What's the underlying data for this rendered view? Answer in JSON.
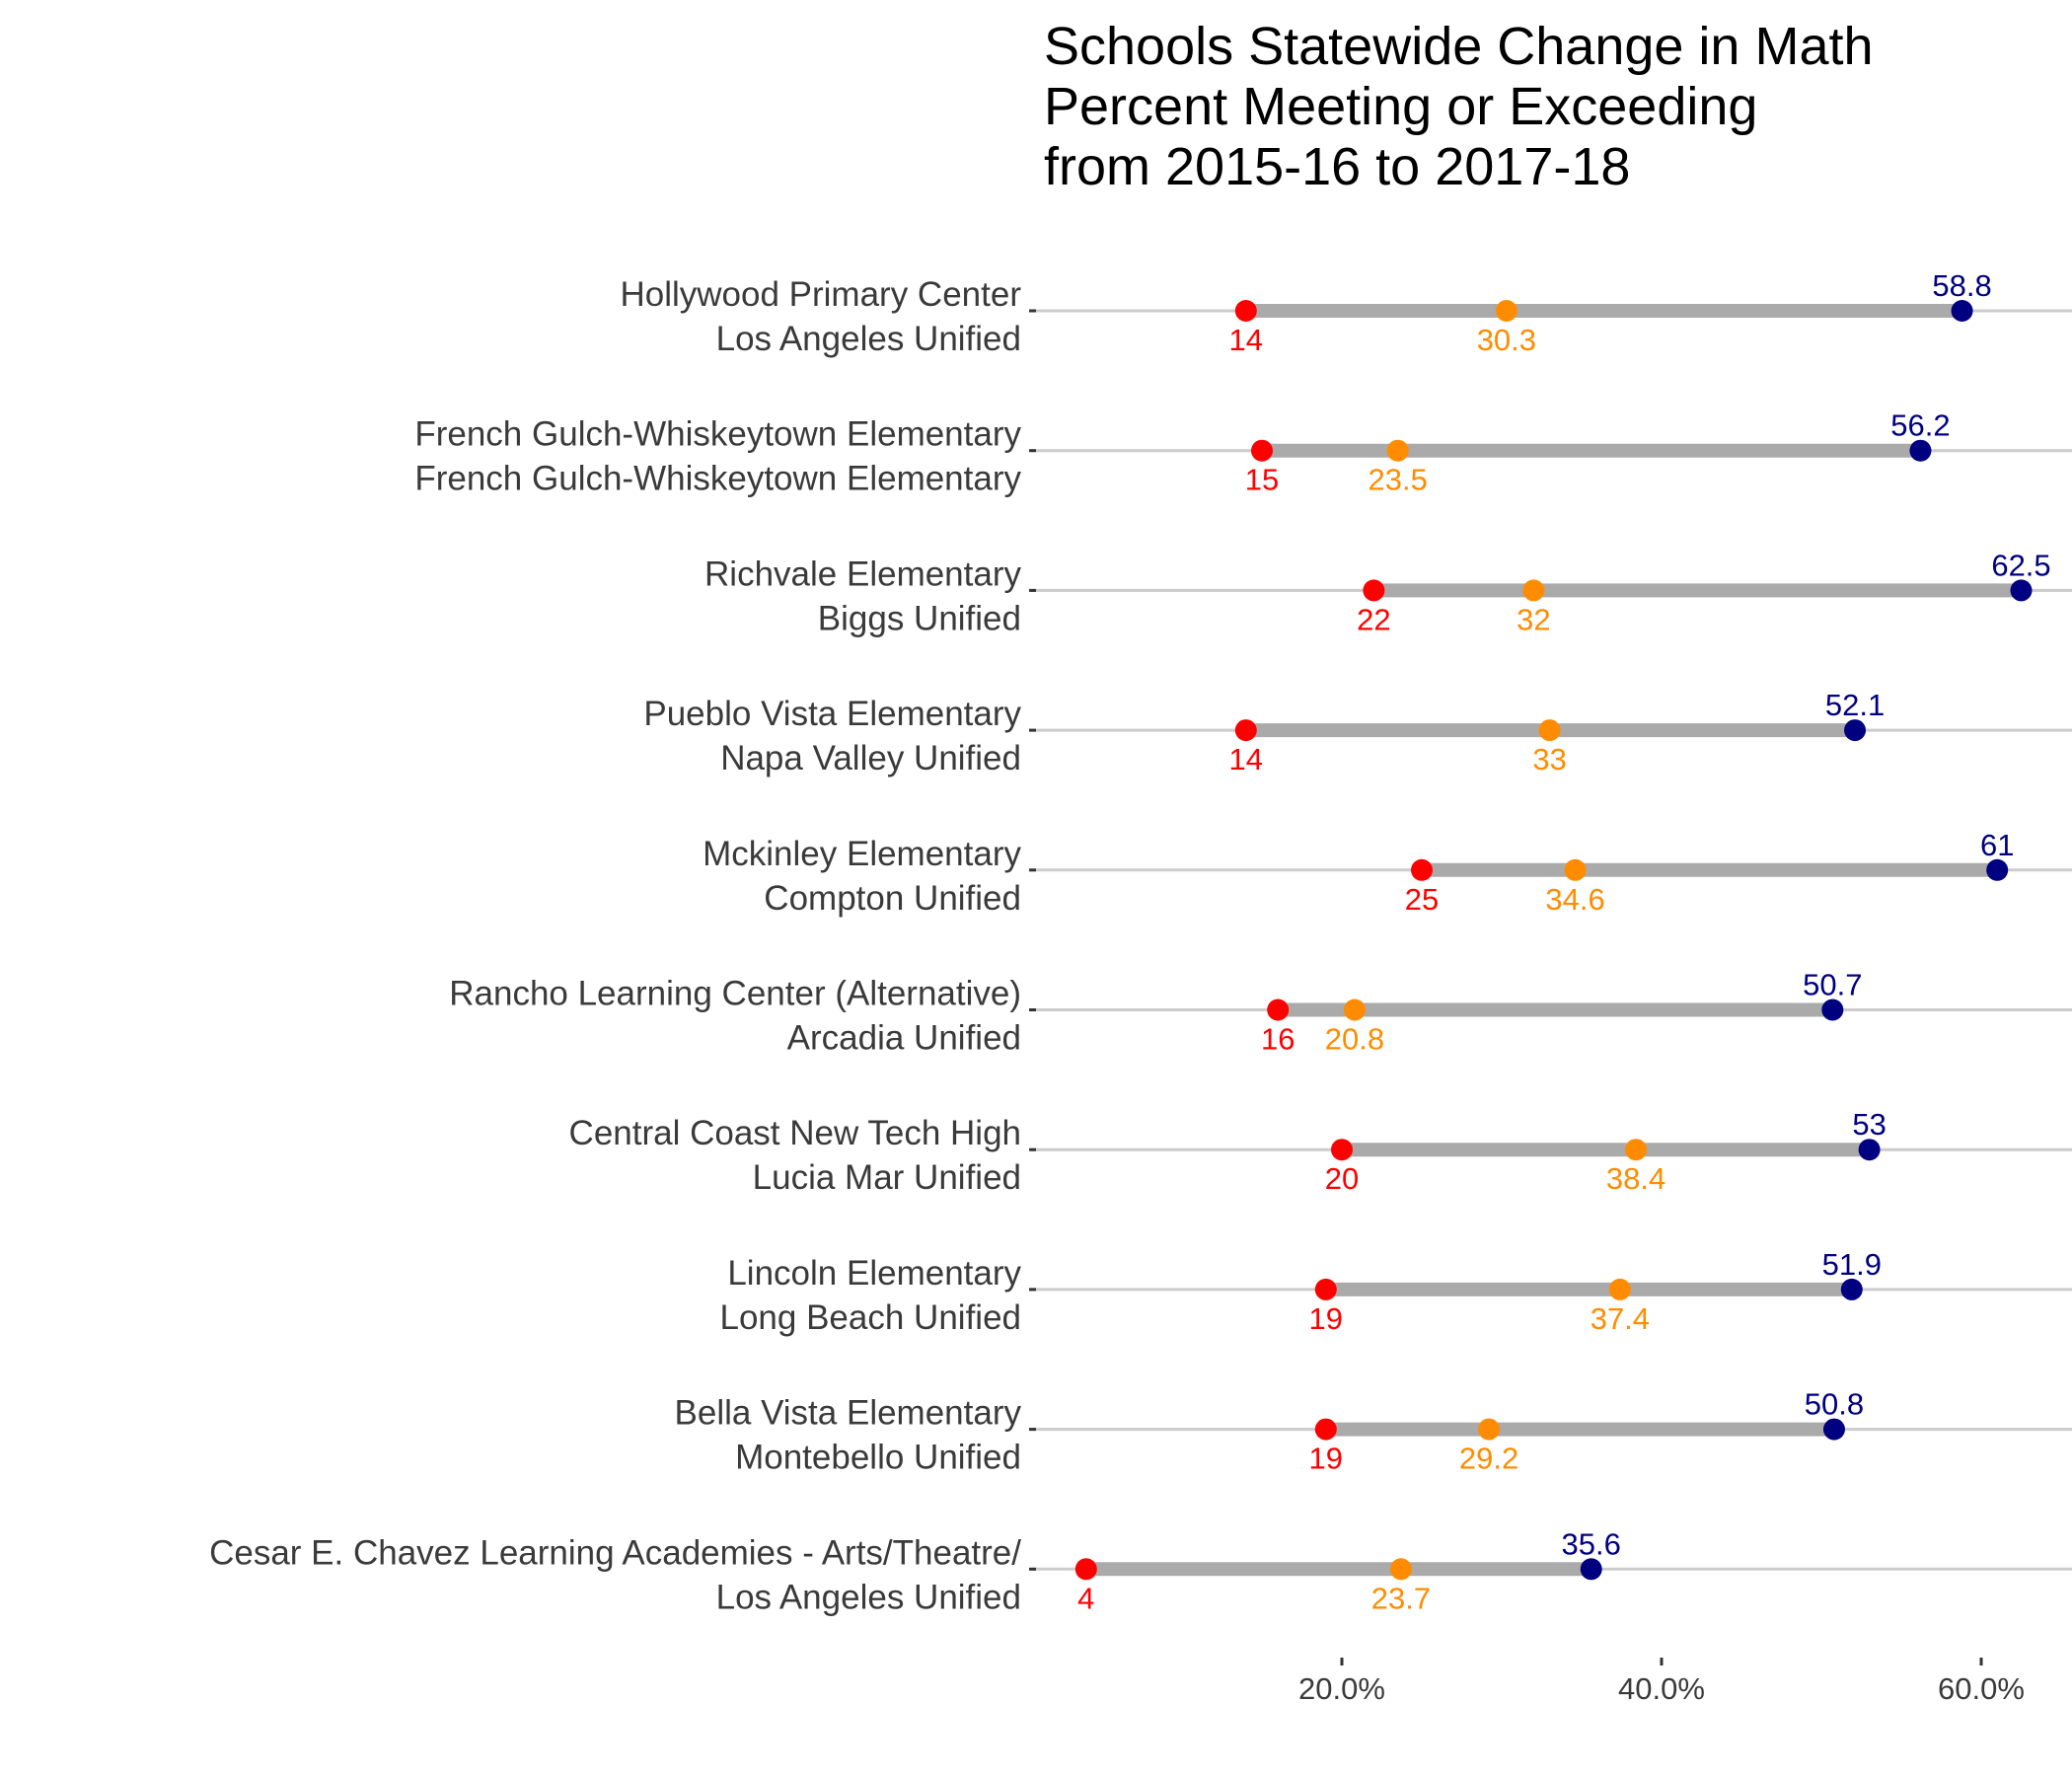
{
  "chart_data": {
    "type": "dumbbell",
    "title": [
      "Schools Statewide Change in Math",
      "Percent Meeting or Exceeding",
      "from 2015-16 to 2017-18"
    ],
    "xlabel": "",
    "ylabel": "",
    "xlim": [
      0,
      65
    ],
    "x_ticks": [
      20,
      40,
      60
    ],
    "x_tick_labels": [
      "20.0%",
      "40.0%",
      "60.0%"
    ],
    "grid": "horizontal row lines",
    "colors": {
      "low": "#ff0000",
      "middle": "#ff8c00",
      "high": "#000080",
      "segment": "#aaaaaa",
      "gridline": "#cccccc"
    },
    "rows": [
      {
        "school": "Hollywood Primary Center",
        "district": "Los Angeles Unified",
        "low": 14,
        "middle": 30.3,
        "high": 58.8
      },
      {
        "school": "French Gulch-Whiskeytown Elementary",
        "district": "French Gulch-Whiskeytown Elementary",
        "low": 15,
        "middle": 23.5,
        "high": 56.2
      },
      {
        "school": "Richvale Elementary",
        "district": "Biggs Unified",
        "low": 22,
        "middle": 32,
        "high": 62.5
      },
      {
        "school": "Pueblo Vista Elementary",
        "district": "Napa Valley Unified",
        "low": 14,
        "middle": 33,
        "high": 52.1
      },
      {
        "school": "Mckinley Elementary",
        "district": "Compton Unified",
        "low": 25,
        "middle": 34.6,
        "high": 61
      },
      {
        "school": "Rancho Learning Center (Alternative)",
        "district": "Arcadia Unified",
        "low": 16,
        "middle": 20.8,
        "high": 50.7
      },
      {
        "school": "Central Coast New Tech High",
        "district": "Lucia Mar Unified",
        "low": 20,
        "middle": 38.4,
        "high": 53
      },
      {
        "school": "Lincoln Elementary",
        "district": "Long Beach Unified",
        "low": 19,
        "middle": 37.4,
        "high": 51.9
      },
      {
        "school": "Bella Vista Elementary",
        "district": "Montebello Unified",
        "low": 19,
        "middle": 29.2,
        "high": 50.8
      },
      {
        "school": "Cesar E. Chavez Learning Academies - Arts/Theatre/",
        "district": "Los Angeles Unified",
        "low": 4,
        "middle": 23.7,
        "high": 35.6
      }
    ]
  }
}
